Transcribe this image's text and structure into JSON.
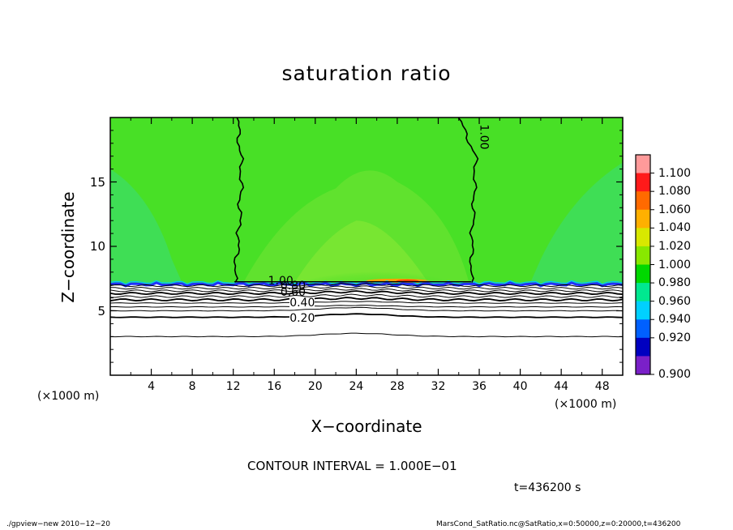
{
  "chart_data": {
    "type": "heatmap",
    "title": "saturation ratio",
    "xlabel": "X−coordinate",
    "ylabel": "Z−coordinate",
    "x_unit_left": "(×1000 m)",
    "x_unit_right": "(×1000 m)",
    "xlim": [
      0,
      50
    ],
    "ylim": [
      0,
      20
    ],
    "xticks": [
      4,
      8,
      12,
      16,
      20,
      24,
      28,
      32,
      36,
      40,
      44,
      48
    ],
    "yticks": [
      5,
      10,
      15
    ],
    "contour_interval_text": "CONTOUR INTERVAL = 1.000E−01",
    "time_text": "t=436200 s",
    "contour_labels": [
      {
        "text": "1.00",
        "x": 36,
        "y": 18.3
      },
      {
        "text": "1.00",
        "x": 15.4,
        "y": 7.3
      },
      {
        "text": "0.80",
        "x": 16.6,
        "y": 6.9
      },
      {
        "text": "0.60",
        "x": 16.6,
        "y": 6.4
      },
      {
        "text": "0.40",
        "x": 17.5,
        "y": 5.6
      },
      {
        "text": "0.20",
        "x": 17.5,
        "y": 4.4
      }
    ],
    "colorbar": {
      "levels": [
        "1.100",
        "1.080",
        "1.060",
        "1.040",
        "1.020",
        "1.000",
        "0.980",
        "0.960",
        "0.940",
        "0.920",
        "0.900"
      ],
      "colors": [
        "#ff9a9a",
        "#ff1a1a",
        "#ff6a00",
        "#ffb000",
        "#d8e800",
        "#88e800",
        "#00d800",
        "#00e890",
        "#00d0ff",
        "#0060ff",
        "#0000c0",
        "#7a20c8"
      ]
    },
    "field_colors": {
      "background": "#48e026",
      "upper_center": "#60e22e",
      "mid_center": "#78e632",
      "sides": "#3ddd62",
      "peak": "#ffa000",
      "near_surface": "#ffffff",
      "boundary": "#2030ff"
    }
  },
  "footer": {
    "left": "./gpview−new   2010−12−20",
    "right": "MarsCond_SatRatio.nc@SatRatio,x=0:50000,z=0:20000,t=436200"
  }
}
